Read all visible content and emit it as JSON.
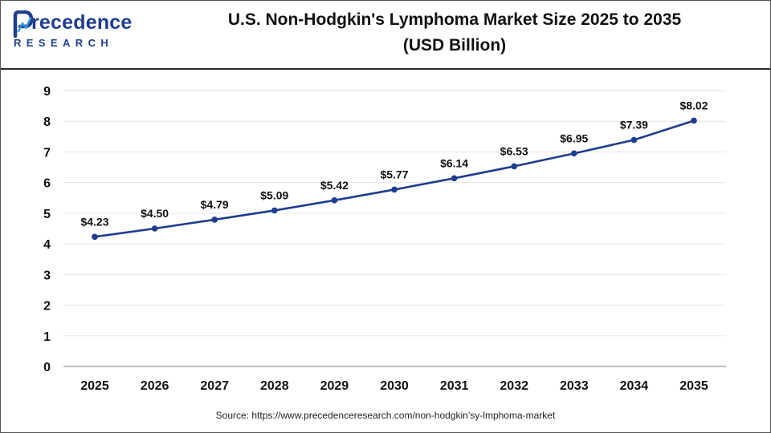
{
  "brand": {
    "name_first": "P",
    "name_rest": "recedence",
    "subtitle": "RESEARCH",
    "color": "#1e3d8f"
  },
  "title": {
    "line1": "U.S. Non-Hodgkin's Lymphoma Market Size 2025 to 2035",
    "line2": "(USD Billion)"
  },
  "source": "Source: https://www.precedenceresearch.com/non-hodgkin’sy-lmphoma-market",
  "chart_data": {
    "type": "line",
    "title": "U.S. Non-Hodgkin's Lymphoma Market Size 2025 to 2035 (USD Billion)",
    "xlabel": "",
    "ylabel": "",
    "categories": [
      "2025",
      "2026",
      "2027",
      "2028",
      "2029",
      "2030",
      "2031",
      "2032",
      "2033",
      "2034",
      "2035"
    ],
    "series": [
      {
        "values": [
          4.23,
          4.5,
          4.79,
          5.09,
          5.42,
          5.77,
          6.14,
          6.53,
          6.95,
          7.39,
          8.02
        ],
        "labels": [
          "$4.23",
          "$4.50",
          "$4.79",
          "$5.09",
          "$5.42",
          "$5.77",
          "$6.14",
          "$6.53",
          "$6.95",
          "$7.39",
          "$8.02"
        ],
        "color": "#1e3d8f"
      }
    ],
    "ylim": [
      0,
      9
    ],
    "yticks": [
      "0",
      "1",
      "2",
      "3",
      "4",
      "5",
      "6",
      "7",
      "8",
      "9"
    ],
    "grid": true,
    "legend": "none"
  }
}
